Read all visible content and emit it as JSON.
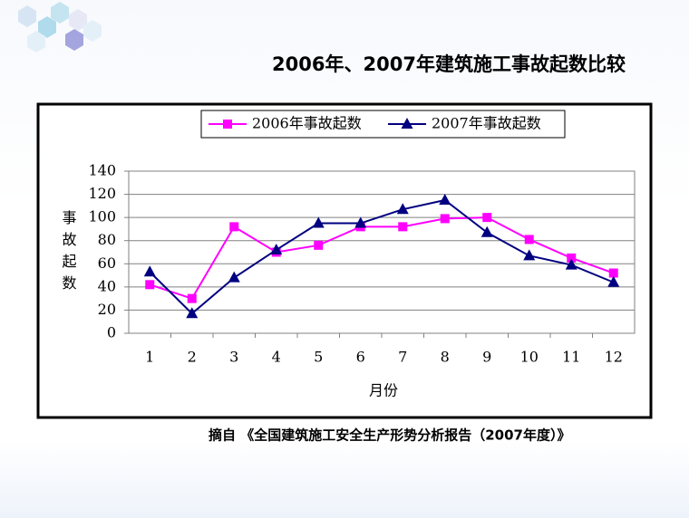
{
  "chart_data": {
    "type": "line",
    "title": "2006年、2007年建筑施工事故起数比较",
    "x_label": "月份",
    "y_label": "事故起数",
    "categories": [
      "1",
      "2",
      "3",
      "4",
      "5",
      "6",
      "7",
      "8",
      "9",
      "10",
      "11",
      "12"
    ],
    "series": [
      {
        "name": "2006年事故起数",
        "color": "#ff00ff",
        "marker": "square",
        "values": [
          42,
          30,
          92,
          70,
          76,
          92,
          92,
          99,
          100,
          81,
          65,
          52
        ]
      },
      {
        "name": "2007年事故起数",
        "color": "#000080",
        "marker": "triangle",
        "values": [
          53,
          17,
          48,
          72,
          95,
          95,
          107,
          115,
          87,
          67,
          59,
          44
        ]
      }
    ],
    "ylim": [
      0,
      140
    ],
    "yticks": [
      0,
      20,
      40,
      60,
      80,
      100,
      120,
      140
    ],
    "grid": true,
    "legend": "top"
  },
  "footer": {
    "source": "摘自 《全国建筑施工安全生产形势分析报告（2007年度）》"
  }
}
